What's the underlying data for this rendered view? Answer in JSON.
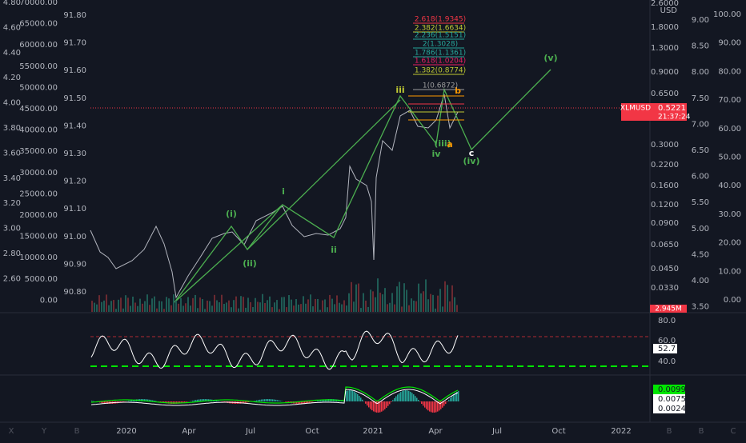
{
  "left_axes": [
    [
      "4.80",
      "4.60",
      "4.40",
      "4.20",
      "4.00",
      "3.80",
      "3.60",
      "3.40",
      "3.20",
      "3.00",
      "2.80",
      "2.60"
    ],
    [
      "70000.00",
      "65000.00",
      "60000.00",
      "55000.00",
      "50000.00",
      "45000.00",
      "40000.00",
      "35000.00",
      "30000.00",
      "25000.00",
      "20000.00",
      "15000.00",
      "10000.00",
      "5000.00",
      "0.00"
    ],
    [
      "91.80",
      "91.70",
      "91.60",
      "91.50",
      "91.40",
      "91.30",
      "91.20",
      "91.10",
      "91.00",
      "90.90",
      "90.80"
    ]
  ],
  "right_axes": [
    [
      "2.6000",
      "1.8000",
      "1.3000",
      "0.9000",
      "0.6500",
      "0.3000",
      "0.2200",
      "0.1600",
      "0.1200",
      "0.0900",
      "0.0650",
      "0.0450",
      "0.0330"
    ],
    [
      "9.00",
      "8.50",
      "8.00",
      "7.50",
      "7.00",
      "6.50",
      "6.00",
      "5.50",
      "5.00",
      "4.50",
      "4.00",
      "3.50"
    ],
    [
      "100.00",
      "90.00",
      "80.00",
      "70.00",
      "60.00",
      "50.00",
      "40.00",
      "30.00",
      "20.00",
      "10.00",
      "0.00"
    ]
  ],
  "currency": "USD",
  "volume_tag": "2.945M",
  "ticker": {
    "symbol": "XLMUSD",
    "price": "0.5221",
    "countdown": "21:37:24"
  },
  "rsi_axis": [
    "80.0",
    "60.0",
    "40.0"
  ],
  "rsi_tag": "52.7",
  "macd_tags": [
    "0.0099",
    "0.0075",
    "0.0024"
  ],
  "x_axis": [
    "2020",
    "Apr",
    "Jul",
    "Oct",
    "2021",
    "Apr",
    "Jul",
    "Oct",
    "2022"
  ],
  "corner_labels": [
    "X",
    "Y",
    "B",
    "B",
    "B",
    "C"
  ],
  "waves": [
    "(i)",
    "(ii)",
    "i",
    "ii",
    "iii",
    "iv",
    "(iii)",
    "a",
    "b",
    "c",
    "(iv)",
    "(v)"
  ],
  "fib_levels": [
    "2.618(1.9345)",
    "2.382(1.6634)",
    "2.236(1.5151)",
    "2(1.3028)",
    "1.786(1.1361)",
    "1.618(1.0204)",
    "1.382(0.8774)",
    "1(0.6872)"
  ]
}
